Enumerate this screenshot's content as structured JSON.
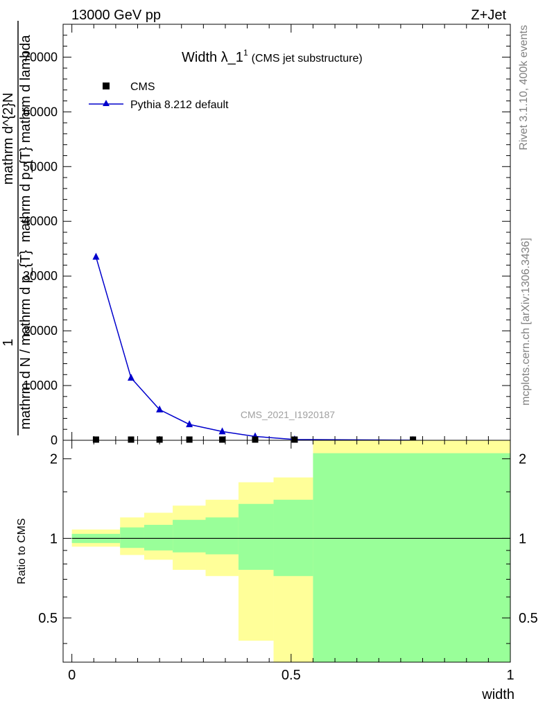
{
  "header": {
    "left": "13000 GeV pp",
    "right": "Z+Jet"
  },
  "side": {
    "rivet": "Rivet 3.1.10,  400k events",
    "mcplots": "mcplots.cern.ch [arXiv:1306.3436]"
  },
  "watermark": "CMS_2021_I1920187",
  "chart_data": [
    {
      "type": "line",
      "title": "Width λ_1",
      "title_sup": "1",
      "title_paren": "(CMS jet substructure)",
      "ylabel_top": "1",
      "ylabel_lines": [
        "mathrm d N / mathrm d p_T",
        "mathrm d p_T mathrm d lambda",
        "mathrm d^2N"
      ],
      "ylabel_mid": "mathrm d N / mathrm d p",
      "ylabel_parts": {
        "numerator": "mathrm d^{2}N",
        "denominator": "mathrm d p_{T} mathrm d lambda",
        "prefactor_num": "1",
        "prefactor_den": "mathrm d N / mathrm d p_{T}"
      },
      "xlim": [
        -0.02,
        1.0
      ],
      "ylim": [
        0,
        76000
      ],
      "yticks": [
        {
          "v": 0,
          "label": "0"
        },
        {
          "v": 10000,
          "label": "10000"
        },
        {
          "v": 20000,
          "label": "20000"
        },
        {
          "v": 30000,
          "label": "30000"
        },
        {
          "v": 40000,
          "label": "40000"
        },
        {
          "v": 50000,
          "label": "50000"
        },
        {
          "v": 60000,
          "label": "60000"
        },
        {
          "v": 70000,
          "label": "70000"
        }
      ],
      "series": [
        {
          "name": "CMS",
          "marker": "square",
          "color": "#000000",
          "x": [
            0.055,
            0.135,
            0.2,
            0.268,
            0.343,
            0.418,
            0.508,
            0.778
          ],
          "y": [
            0,
            0,
            0,
            0,
            0,
            0,
            0,
            0
          ]
        },
        {
          "name": "Pythia 8.212 default",
          "marker": "triangle",
          "color": "#0000cc",
          "x": [
            0.055,
            0.135,
            0.2,
            0.268,
            0.343,
            0.418,
            0.508,
            0.778
          ],
          "y": [
            33500,
            11400,
            5600,
            2900,
            1600,
            700,
            150,
            15
          ]
        }
      ],
      "legend": "top-left"
    },
    {
      "type": "area",
      "ylabel": "Ratio to CMS",
      "xlabel": "width",
      "xlim": [
        -0.02,
        1.0
      ],
      "ylim": [
        0.34,
        2.35
      ],
      "log_y": true,
      "yticks": [
        {
          "v": 0.5,
          "label": "0.5"
        },
        {
          "v": 1,
          "label": "1"
        },
        {
          "v": 2,
          "label": "2"
        }
      ],
      "xticks": [
        {
          "v": 0,
          "label": "0"
        },
        {
          "v": 0.5,
          "label": "0.5"
        },
        {
          "v": 1,
          "label": "1"
        }
      ],
      "bands": [
        {
          "x0": 0.0,
          "x1": 0.11,
          "y_lo": 0.93,
          "y_hi": 1.08,
          "g_lo": 0.96,
          "g_hi": 1.04
        },
        {
          "x0": 0.11,
          "x1": 0.165,
          "y_lo": 0.865,
          "y_hi": 1.2,
          "g_lo": 0.92,
          "g_hi": 1.1
        },
        {
          "x0": 0.165,
          "x1": 0.23,
          "y_lo": 0.83,
          "y_hi": 1.25,
          "g_lo": 0.9,
          "g_hi": 1.125
        },
        {
          "x0": 0.23,
          "x1": 0.305,
          "y_lo": 0.76,
          "y_hi": 1.33,
          "g_lo": 0.885,
          "g_hi": 1.175
        },
        {
          "x0": 0.305,
          "x1": 0.38,
          "y_lo": 0.72,
          "y_hi": 1.4,
          "g_lo": 0.87,
          "g_hi": 1.2
        },
        {
          "x0": 0.38,
          "x1": 0.46,
          "y_lo": 0.41,
          "y_hi": 1.63,
          "g_lo": 0.76,
          "g_hi": 1.35
        },
        {
          "x0": 0.46,
          "x1": 0.55,
          "y_lo": 0.34,
          "y_hi": 1.7,
          "g_lo": 0.72,
          "g_hi": 1.4
        },
        {
          "x0": 0.55,
          "x1": 1.0,
          "y_lo": 0.34,
          "y_hi": 2.35,
          "g_lo": 0.34,
          "g_hi": 2.1
        }
      ],
      "ratio_line": 1.0,
      "band_colors": {
        "outer": "#ffff99",
        "inner": "#99ff99"
      }
    }
  ]
}
